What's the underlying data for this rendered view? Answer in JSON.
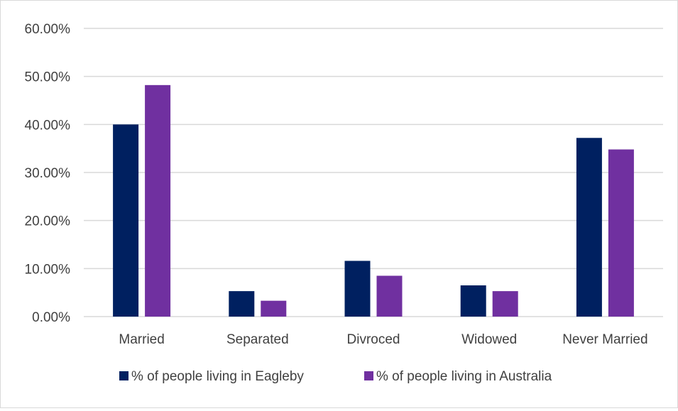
{
  "chart_data": {
    "type": "bar",
    "categories": [
      "Married",
      "Separated",
      "Divroced",
      "Widowed",
      "Never Married"
    ],
    "series": [
      {
        "name": "% of people living in Eagleby",
        "color": "#002060",
        "values": [
          40.0,
          5.3,
          11.6,
          6.5,
          37.2
        ]
      },
      {
        "name": "% of people living in Australia",
        "color": "#7030A0",
        "values": [
          48.2,
          3.3,
          8.5,
          5.3,
          34.8
        ]
      }
    ],
    "y_ticks": [
      "0.00%",
      "10.00%",
      "20.00%",
      "30.00%",
      "40.00%",
      "50.00%",
      "60.00%"
    ],
    "ylim": [
      0,
      60
    ],
    "grid": true,
    "legend_position": "bottom",
    "gridline_color": "#d9d9d9",
    "tick_color": "#404040"
  }
}
